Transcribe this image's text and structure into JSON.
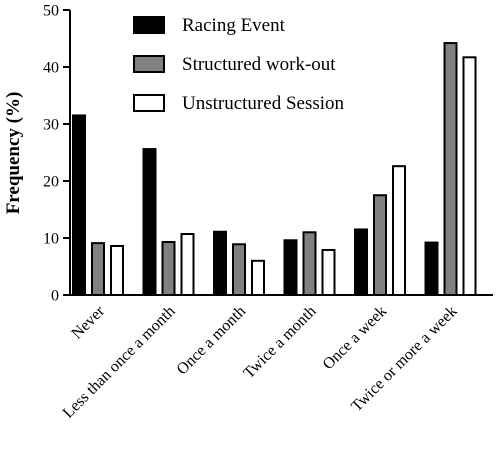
{
  "chart_data": {
    "type": "bar",
    "ylabel": "Frequency (%)",
    "ylim": [
      0,
      50
    ],
    "yticks": [
      0,
      10,
      20,
      30,
      40,
      50
    ],
    "categories": [
      "Never",
      "Less than once a month",
      "Once a month",
      "Twice a month",
      "Once a week",
      "Twice or more a week"
    ],
    "series": [
      {
        "name": "Racing Event",
        "color": "#000000",
        "values": [
          31.5,
          25.6,
          11.1,
          9.6,
          11.5,
          9.2
        ]
      },
      {
        "name": "Structured work-out",
        "color": "#808080",
        "values": [
          9.1,
          9.3,
          8.9,
          11.0,
          17.5,
          44.2
        ]
      },
      {
        "name": "Unstructured Session",
        "color": "#ffffff",
        "values": [
          8.6,
          10.7,
          6.0,
          7.9,
          22.6,
          41.7
        ]
      }
    ],
    "legend_position": "top-left",
    "grid": false
  }
}
